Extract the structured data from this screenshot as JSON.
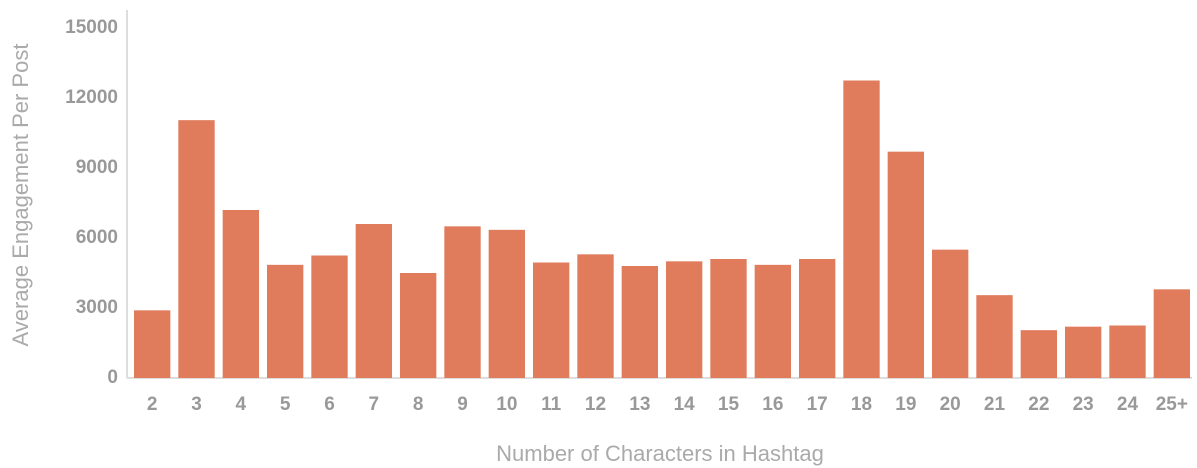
{
  "chart_data": {
    "type": "bar",
    "categories": [
      "2",
      "3",
      "4",
      "5",
      "6",
      "7",
      "8",
      "9",
      "10",
      "11",
      "12",
      "13",
      "14",
      "15",
      "16",
      "17",
      "18",
      "19",
      "20",
      "21",
      "22",
      "23",
      "24",
      "25+"
    ],
    "values": [
      2900,
      11050,
      7200,
      4850,
      5250,
      6600,
      4500,
      6500,
      6350,
      4950,
      5300,
      4800,
      5000,
      5100,
      4850,
      5100,
      12750,
      9700,
      5500,
      3550,
      2050,
      2200,
      2250,
      3800
    ],
    "color": "#e07b5c",
    "xlabel": "Number of Characters in Hashtag",
    "ylabel": "Average Engagement Per Post",
    "ylim": [
      0,
      15000
    ],
    "yticks": [
      0,
      3000,
      6000,
      9000,
      12000,
      15000
    ],
    "grid": false
  }
}
